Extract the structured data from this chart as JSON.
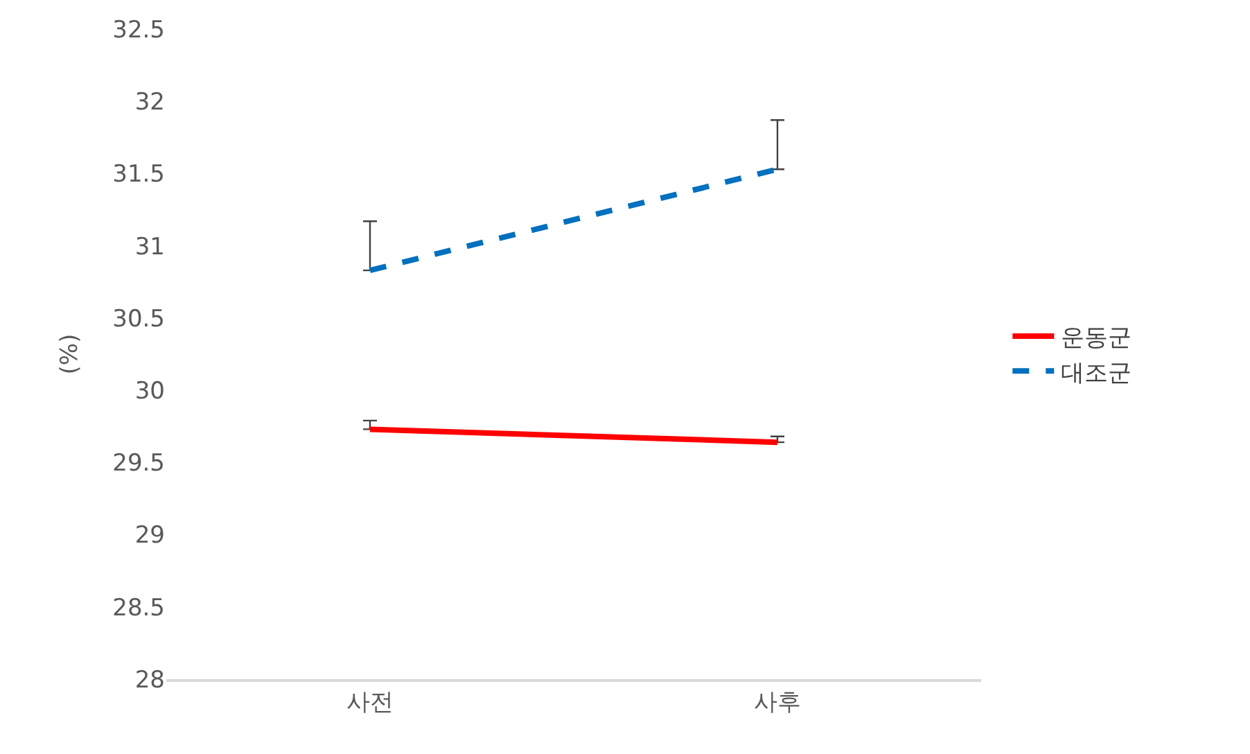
{
  "chart_data": {
    "type": "line",
    "ylabel": "(%)",
    "categories": [
      "사전",
      "사후"
    ],
    "series": [
      {
        "name": "운동군",
        "color": "#ff0000",
        "line_style": "solid",
        "values": [
          29.73,
          29.64
        ],
        "errors": [
          [
            29.73,
            29.79
          ],
          [
            29.64,
            29.68
          ]
        ]
      },
      {
        "name": "대조군",
        "color": "#0070c0",
        "line_style": "dashed",
        "values": [
          30.83,
          31.53
        ],
        "errors": [
          [
            30.83,
            31.17
          ],
          [
            31.53,
            31.87
          ]
        ]
      }
    ],
    "ylim": [
      28,
      32.5
    ],
    "yticks": [
      28,
      28.5,
      29,
      29.5,
      30,
      30.5,
      31,
      31.5,
      32,
      32.5
    ],
    "grid": false,
    "legend": "right"
  }
}
